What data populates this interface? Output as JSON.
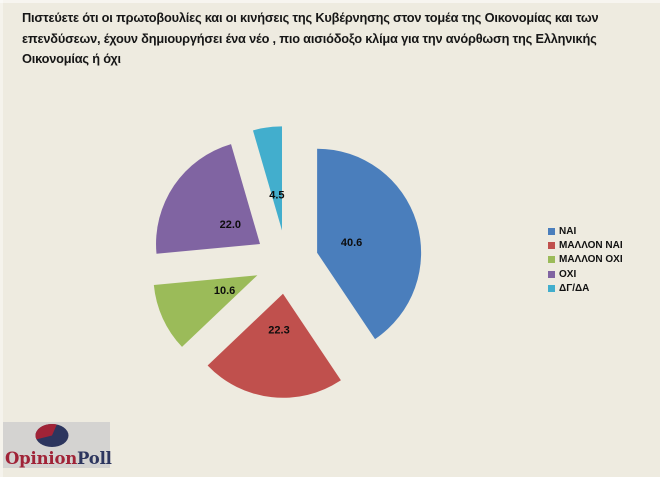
{
  "title": {
    "lines": [
      "Πιστεύετε ότι οι πρωτοβουλίες και οι κινήσεις της Κυβέρνησης στον τομέα της Οικονομίας και των",
      "επενδύσεων, έχουν δημιουργήσει ένα νέο , πιο αισιόδοξο κλίμα για την ανόρθωση της Ελληνικής",
      "Οικονομίας ή όχι"
    ]
  },
  "chart_data": {
    "type": "pie",
    "exploded": true,
    "direction": "clockwise",
    "start_angle_deg": 0,
    "categories": [
      "ΝΑΙ",
      "ΜΑΛΛΟΝ ΝΑΙ",
      "ΜΑΛΛΟΝ ΟΧΙ",
      "ΟΧΙ",
      "ΔΓ/ΔΑ"
    ],
    "values": [
      40.6,
      22.3,
      10.6,
      22.0,
      4.5
    ],
    "labels": [
      "40.6",
      "22.3",
      "10.6",
      "22.0",
      "4.5"
    ],
    "colors": [
      "#4A7EBC",
      "#C0504D",
      "#9BBB59",
      "#8064A2",
      "#42AECD"
    ],
    "total": 100.0,
    "legend_position": "right"
  },
  "logo": {
    "text_primary": "Opinion",
    "text_secondary": "Poll",
    "primary_color": "#A02337",
    "secondary_color": "#2C355E",
    "background": "#D4D3D1"
  },
  "colors": {
    "page_background": "#EEEBE0",
    "title_text": "#161616",
    "value_label_text": "#0d0d0d"
  }
}
